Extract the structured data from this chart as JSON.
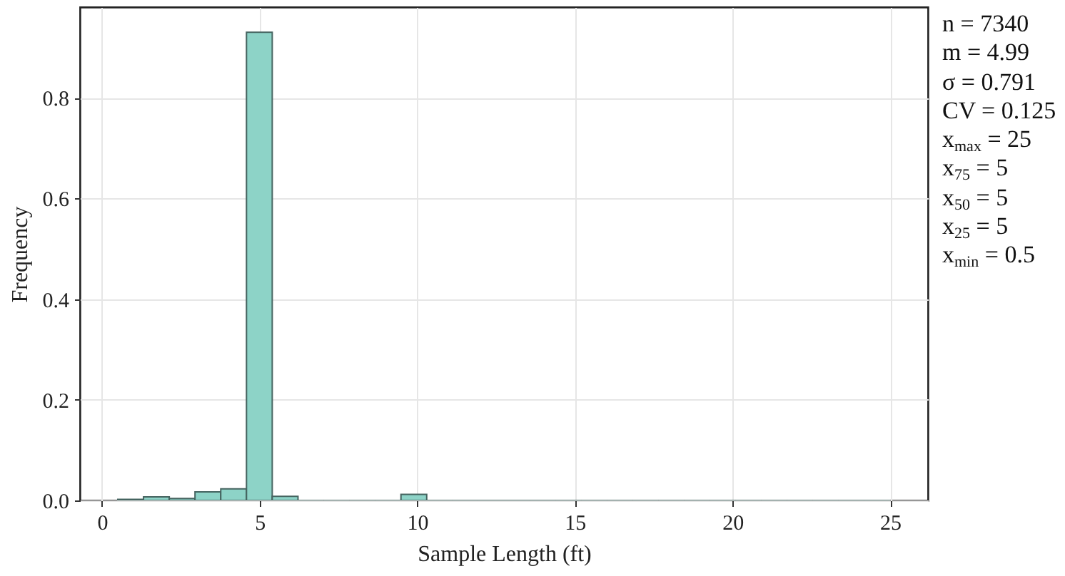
{
  "chart_data": {
    "type": "histogram",
    "xlabel": "Sample Length (ft)",
    "ylabel": "Frequency",
    "bins": [
      0.5,
      1.317,
      2.133,
      2.95,
      3.767,
      4.583,
      5.4,
      6.217,
      7.033,
      7.85,
      8.667,
      9.483,
      10.3,
      11.117,
      11.933,
      12.75,
      13.567,
      14.383,
      15.2,
      16.017,
      16.833,
      17.65,
      18.467,
      19.283,
      20.1,
      20.917,
      21.733,
      22.55,
      23.367,
      24.183,
      25
    ],
    "values": [
      0.002,
      0.007,
      0.004,
      0.017,
      0.023,
      0.93,
      0.008,
      0,
      0,
      0,
      0,
      0.012,
      0,
      0,
      0,
      0,
      0,
      0,
      0,
      0,
      0,
      0,
      0,
      0,
      0,
      0,
      0,
      0,
      0,
      0
    ],
    "color": "#8dd3c7",
    "xlim": [
      -0.7,
      26.2
    ],
    "xticks": [
      0,
      5,
      10,
      15,
      20,
      25
    ],
    "ylim": [
      0,
      0.98
    ],
    "yticks": [
      {
        "value": 0,
        "label": "0.0"
      },
      0.2,
      0.4,
      0.6,
      0.8
    ],
    "grid": true,
    "annotations": [
      "n = 7340",
      "m = 4.99",
      "σ = 0.791",
      "CV = 0.125",
      "x$_{max}$ = 25",
      "x$_{75}$ = 5",
      "x$_{50}$ = 5",
      "x$_{25}$ = 5",
      "x$_{min}$ = 0.5"
    ]
  }
}
